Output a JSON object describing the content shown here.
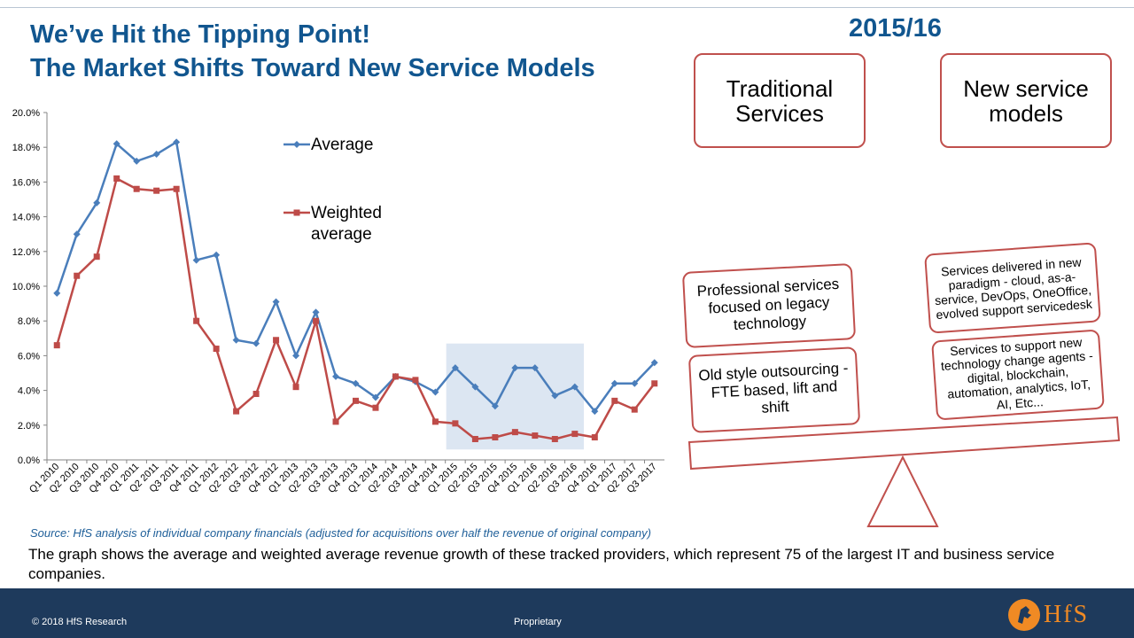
{
  "slide": {
    "title_line1": "We’ve Hit the Tipping Point!",
    "title_line2": "The Market Shifts Toward New Service Models",
    "year": "2015/16",
    "source": "Source: HfS analysis of individual company financials (adjusted for acquisitions over half the revenue of original company)",
    "description": "The graph shows the average and weighted average revenue growth of these tracked providers, which represent 75 of the largest IT and business service companies."
  },
  "boxes": {
    "traditional": "Traditional Services",
    "new_models": "New service models",
    "professional": "Professional services focused on legacy technology",
    "old_style": "Old style outsourcing - FTE based, lift and shift",
    "new_paradigm": "Services delivered in new paradigm - cloud, as-a-service, DevOps, OneOffice, evolved support servicedesk",
    "tech_change": "Services to support new technology change agents - digital, blockchain, automation, analytics, IoT, AI, Etc..."
  },
  "footer": {
    "copyright": "© 2018 HfS Research",
    "proprietary": "Proprietary",
    "logo_text": "HfS"
  },
  "colors": {
    "title": "#11568f",
    "average": "#4a7ebb",
    "weighted": "#be4b48",
    "highlight": "#dce6f2",
    "box_border": "#c0504d",
    "footer_bg": "#1e3a5c",
    "logo": "#f08a24"
  },
  "chart_data": {
    "type": "line",
    "categories": [
      "Q1 2010",
      "Q2 2010",
      "Q3 2010",
      "Q4 2010",
      "Q1 2011",
      "Q2 2011",
      "Q3 2011",
      "Q4 2011",
      "Q1 2012",
      "Q2 2012",
      "Q3 2012",
      "Q4 2012",
      "Q1 2013",
      "Q2 2013",
      "Q3 2013",
      "Q4 2013",
      "Q1 2014",
      "Q2 2014",
      "Q3 2014",
      "Q4 2014",
      "Q1 2015",
      "Q2 2015",
      "Q3 2015",
      "Q4 2015",
      "Q1 2016",
      "Q2 2016",
      "Q3 2016",
      "Q4 2016",
      "Q1 2017",
      "Q2 2017",
      "Q3 2017"
    ],
    "ylim": [
      0,
      20
    ],
    "yticks": [
      "0.0%",
      "2.0%",
      "4.0%",
      "6.0%",
      "8.0%",
      "10.0%",
      "12.0%",
      "14.0%",
      "16.0%",
      "18.0%",
      "20.0%"
    ],
    "series": [
      {
        "name": "Average",
        "marker": "diamond",
        "values": [
          9.6,
          13.0,
          14.8,
          18.2,
          17.2,
          17.6,
          18.3,
          11.5,
          11.8,
          6.9,
          6.7,
          9.1,
          6.0,
          8.5,
          4.8,
          4.4,
          3.6,
          4.8,
          4.5,
          3.9,
          5.3,
          4.2,
          3.1,
          5.3,
          5.3,
          3.7,
          4.2,
          2.8,
          4.4,
          4.4,
          5.6
        ]
      },
      {
        "name": "Weighted average",
        "marker": "square",
        "values": [
          6.6,
          10.6,
          11.7,
          16.2,
          15.6,
          15.5,
          15.6,
          8.0,
          6.4,
          2.8,
          3.8,
          6.9,
          4.2,
          8.0,
          2.2,
          3.4,
          3.0,
          4.8,
          4.6,
          2.2,
          2.1,
          1.2,
          1.3,
          1.6,
          1.4,
          1.2,
          1.5,
          1.3,
          3.4,
          2.9,
          4.4
        ]
      }
    ],
    "highlight_range": [
      "Q1 2015",
      "Q3 2016"
    ],
    "legend": [
      "Average",
      "Weighted average"
    ],
    "grid": false
  }
}
